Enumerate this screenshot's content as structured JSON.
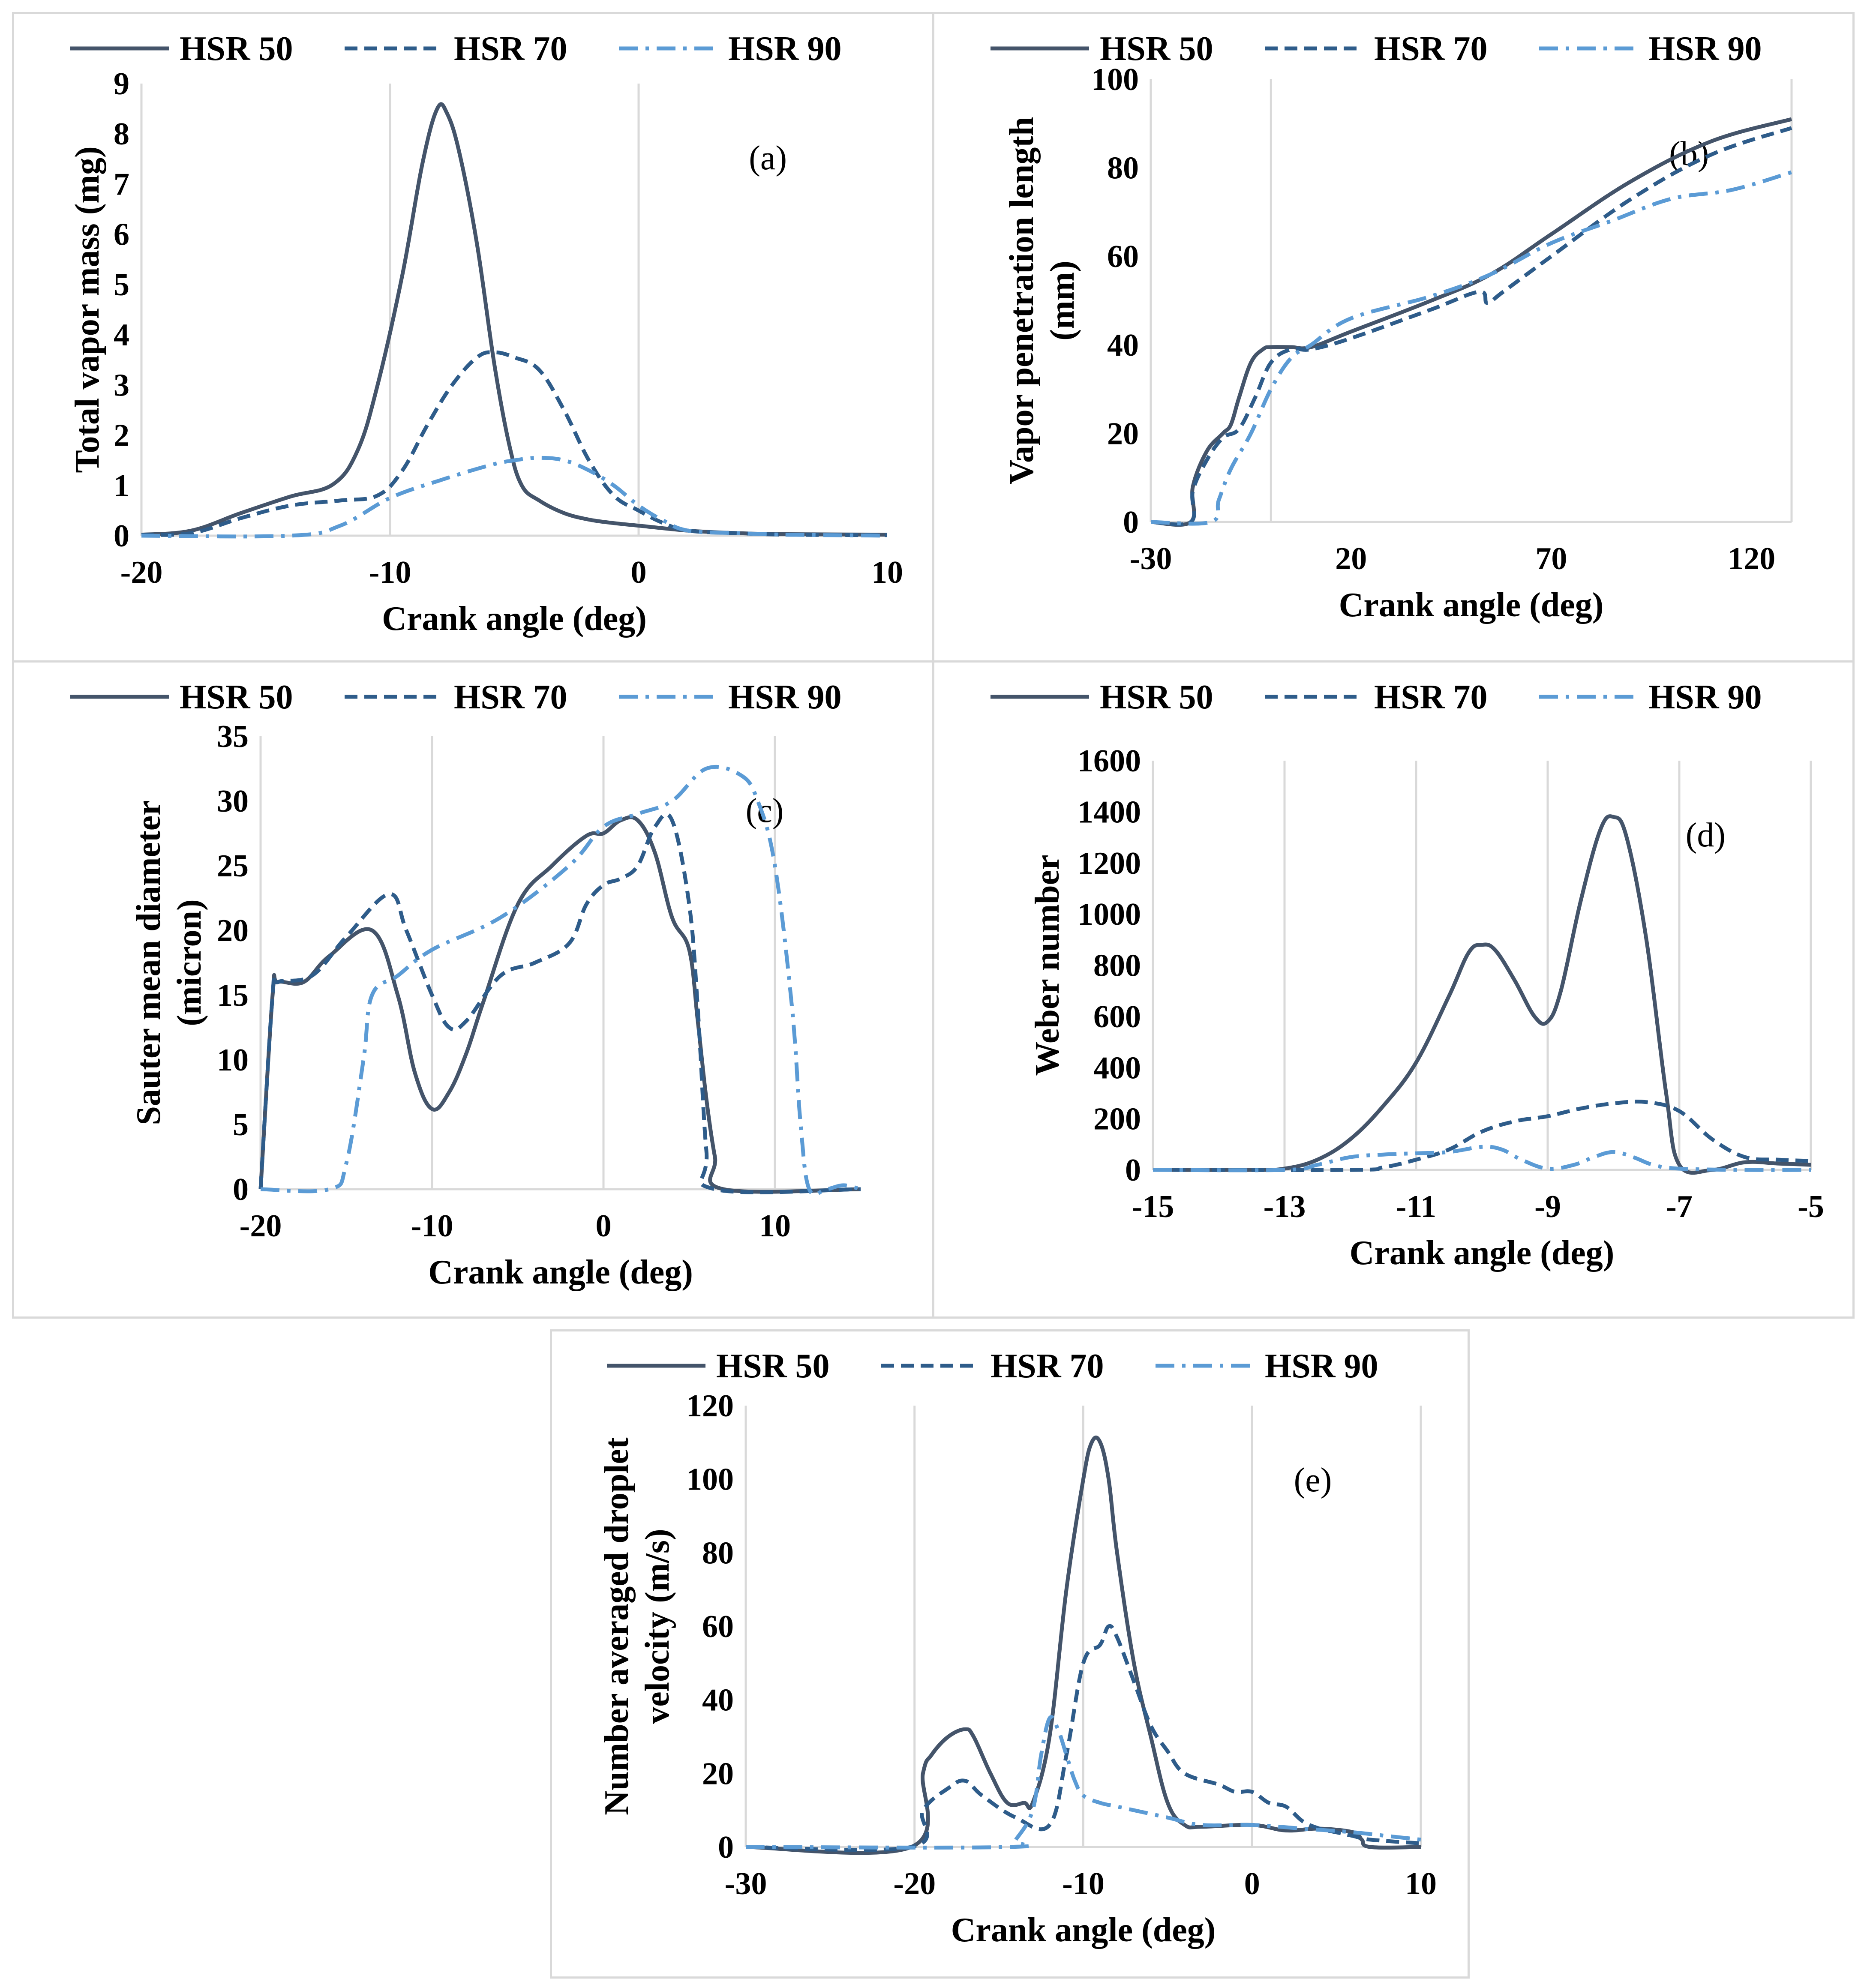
{
  "series_styles": [
    {
      "name": "HSR 50",
      "color": "#44546a",
      "dash": "none"
    },
    {
      "name": "HSR 70",
      "color": "#2e5c8a",
      "dash": "30,16"
    },
    {
      "name": "HSR 90",
      "color": "#5b9bd5",
      "dash": "44,18,8,18"
    }
  ],
  "chart_data": [
    {
      "id": "a",
      "type": "line",
      "panel_label": "(a)",
      "xlabel": "Crank angle (deg)",
      "ylabel": [
        "Total vapor mass (mg)"
      ],
      "xlim": [
        -20,
        10
      ],
      "ylim": [
        0,
        9
      ],
      "xticks": [
        -20,
        -10,
        0,
        10
      ],
      "yticks": [
        0,
        1,
        2,
        3,
        4,
        5,
        6,
        7,
        8,
        9
      ],
      "vgrid": [
        -10,
        0
      ],
      "legend": [
        "HSR 50",
        "HSR 70",
        "HSR 90"
      ],
      "series": [
        {
          "name": "HSR 50",
          "x": [
            -20,
            -18,
            -16,
            -14,
            -12.3,
            -11.3,
            -10.5,
            -9.5,
            -8.7,
            -8.1,
            -7.7,
            -7.2,
            -6.5,
            -5.8,
            -5.2,
            -4.7,
            -4,
            -3,
            -2,
            -1,
            0,
            2,
            4,
            6,
            10
          ],
          "y": [
            0.02,
            0.1,
            0.45,
            0.78,
            1.02,
            1.7,
            3.0,
            5.2,
            7.4,
            8.5,
            8.4,
            7.6,
            5.8,
            3.4,
            1.8,
            1.0,
            0.7,
            0.45,
            0.32,
            0.25,
            0.2,
            0.1,
            0.05,
            0.03,
            0.02
          ]
        },
        {
          "name": "HSR 70",
          "x": [
            -20,
            -18,
            -16,
            -14,
            -12,
            -10.5,
            -9.5,
            -8.5,
            -7.5,
            -6.5,
            -5.8,
            -5,
            -4,
            -3,
            -2,
            -1,
            0,
            1,
            2,
            4,
            6,
            10
          ],
          "y": [
            0.02,
            0.05,
            0.35,
            0.6,
            0.7,
            0.8,
            1.3,
            2.2,
            3.0,
            3.55,
            3.65,
            3.55,
            3.3,
            2.5,
            1.5,
            0.8,
            0.5,
            0.25,
            0.1,
            0.05,
            0.02,
            0.01
          ]
        },
        {
          "name": "HSR 90",
          "x": [
            -20,
            -14,
            -12,
            -10,
            -8,
            -6,
            -5,
            -4,
            -3,
            -2,
            -1,
            0,
            1,
            2,
            4,
            6,
            10
          ],
          "y": [
            0,
            0,
            0.2,
            0.75,
            1.1,
            1.4,
            1.5,
            1.55,
            1.5,
            1.3,
            1.0,
            0.6,
            0.3,
            0.1,
            0.05,
            0.02,
            0
          ]
        }
      ]
    },
    {
      "id": "b",
      "type": "line",
      "panel_label": "(b)",
      "xlabel": "Crank angle (deg)",
      "ylabel": [
        "Vapor penetration length",
        "(mm)"
      ],
      "xlim": [
        -30,
        130
      ],
      "ylim": [
        0,
        100
      ],
      "xticks": [
        -30,
        20,
        70,
        120
      ],
      "yticks": [
        0,
        20,
        40,
        60,
        80,
        100
      ],
      "vgrid": [
        0,
        130
      ],
      "legend": [
        "HSR 50",
        "HSR 70",
        "HSR 90"
      ],
      "series": [
        {
          "name": "HSR 50",
          "x": [
            -30,
            -20,
            -19.5,
            -16,
            -12,
            -10,
            -8,
            -5,
            -2,
            0,
            5,
            10,
            20,
            40,
            55,
            70,
            90,
            110,
            130
          ],
          "y": [
            0,
            0,
            8,
            16,
            20,
            22,
            28,
            36,
            39,
            39.5,
            39.5,
            39.5,
            43,
            50,
            56,
            65,
            77,
            86,
            91
          ]
        },
        {
          "name": "HSR 70",
          "x": [
            -30,
            -20,
            -19.5,
            -16,
            -12,
            -8,
            -4,
            0,
            5,
            10,
            20,
            40,
            52,
            54,
            58,
            70,
            90,
            110,
            130
          ],
          "y": [
            0,
            0,
            7,
            14,
            19,
            21,
            28,
            36,
            39,
            39,
            41.5,
            48,
            52,
            49.5,
            52,
            60,
            73,
            83,
            89
          ]
        },
        {
          "name": "HSR 90",
          "x": [
            -30,
            -15,
            -13,
            -10,
            -5,
            0,
            5,
            10,
            20,
            40,
            55,
            70,
            85,
            100,
            115,
            130
          ],
          "y": [
            0,
            0,
            5,
            12,
            20,
            30,
            37,
            40,
            46,
            51,
            56,
            63,
            68,
            73,
            75,
            79
          ]
        }
      ]
    },
    {
      "id": "c",
      "type": "line",
      "panel_label": "(c)",
      "xlabel": "Crank angle (deg)",
      "ylabel": [
        "Sauter mean diameter",
        "(micron)"
      ],
      "xlim": [
        -20,
        15
      ],
      "ylim": [
        0,
        35
      ],
      "xticks": [
        -20,
        -10,
        0,
        10
      ],
      "yticks": [
        0,
        5,
        10,
        15,
        20,
        25,
        30,
        35
      ],
      "vgrid": [
        -10,
        0,
        10
      ],
      "legend": [
        "HSR 50",
        "HSR 70",
        "HSR 90"
      ],
      "series": [
        {
          "name": "HSR 50",
          "x": [
            -20,
            -19.3,
            -19,
            -17.5,
            -16,
            -13.5,
            -12,
            -11,
            -10,
            -9,
            -8,
            -7,
            -5,
            -3,
            -1,
            0,
            1,
            2,
            3,
            4,
            5,
            5.5,
            6,
            6.5,
            7,
            15
          ],
          "y": [
            0,
            15,
            16,
            16,
            18,
            20,
            15,
            9,
            6.2,
            7.5,
            10.5,
            14.5,
            22,
            25,
            27.3,
            27.5,
            28.5,
            28.5,
            26,
            21,
            18.5,
            13,
            7,
            2.5,
            0,
            0
          ]
        },
        {
          "name": "HSR 70",
          "x": [
            -20,
            -19.3,
            -19,
            -17,
            -15,
            -12.5,
            -11.5,
            -10,
            -9,
            -8,
            -6,
            -4,
            -2,
            -1,
            0,
            1,
            2,
            3,
            4,
            5,
            5.5,
            6,
            6.5,
            15
          ],
          "y": [
            0,
            15,
            16,
            16.5,
            19.5,
            22.8,
            20,
            15,
            12.5,
            13,
            16.5,
            17.5,
            19,
            22,
            23.5,
            24,
            25,
            28,
            28.5,
            22,
            14,
            3,
            0,
            0
          ]
        },
        {
          "name": "HSR 90",
          "x": [
            -20,
            -16,
            -15,
            -14,
            -13.5,
            -12,
            -10,
            -6,
            -2,
            0,
            2,
            4,
            6,
            8,
            9,
            10,
            11,
            11.5,
            12,
            13,
            14,
            15
          ],
          "y": [
            0,
            0,
            2,
            10,
            15,
            16.5,
            18.5,
            21,
            25,
            28,
            29,
            30,
            32.5,
            32,
            30,
            25,
            14,
            5,
            0,
            0,
            0.3,
            0
          ]
        }
      ]
    },
    {
      "id": "d",
      "type": "line",
      "panel_label": "(d)",
      "xlabel": "Crank angle (deg)",
      "ylabel": [
        "Weber number"
      ],
      "xlim": [
        -15,
        -5
      ],
      "ylim": [
        0,
        1600
      ],
      "xticks": [
        -15,
        -13,
        -11,
        -9,
        -7,
        -5
      ],
      "yticks": [
        0,
        200,
        400,
        600,
        800,
        1000,
        1200,
        1400,
        1600
      ],
      "vgrid": [
        -13,
        -11,
        -9,
        -7,
        -5
      ],
      "legend": [
        "HSR 50",
        "HSR 70",
        "HSR 90"
      ],
      "series": [
        {
          "name": "HSR 50",
          "x": [
            -15,
            -13.5,
            -13,
            -12.5,
            -12,
            -11.5,
            -11,
            -10.5,
            -10.2,
            -10,
            -9.8,
            -9.5,
            -9.2,
            -9,
            -8.8,
            -8.5,
            -8.2,
            -8,
            -7.8,
            -7.5,
            -7.2,
            -7,
            -6.5,
            -6,
            -5.5,
            -5
          ],
          "y": [
            0,
            0,
            5,
            40,
            120,
            250,
            420,
            680,
            850,
            880,
            860,
            740,
            600,
            580,
            700,
            1050,
            1330,
            1380,
            1300,
            900,
            300,
            20,
            0,
            30,
            25,
            20
          ]
        },
        {
          "name": "HSR 70",
          "x": [
            -15,
            -12,
            -11.5,
            -11,
            -10.5,
            -10,
            -9.5,
            -9,
            -8.5,
            -8,
            -7.5,
            -7,
            -6.5,
            -6,
            -5.5,
            -5
          ],
          "y": [
            0,
            0,
            10,
            40,
            80,
            150,
            190,
            210,
            240,
            260,
            265,
            230,
            120,
            50,
            40,
            35
          ]
        },
        {
          "name": "HSR 90",
          "x": [
            -15,
            -13,
            -12.5,
            -12,
            -11.5,
            -11,
            -10.5,
            -10,
            -9.7,
            -9.4,
            -9,
            -8.6,
            -8.3,
            -8,
            -7.7,
            -7.4,
            -7,
            -6,
            -5
          ],
          "y": [
            0,
            0,
            20,
            50,
            60,
            65,
            70,
            90,
            80,
            40,
            5,
            20,
            50,
            70,
            50,
            20,
            5,
            0,
            0
          ]
        }
      ]
    },
    {
      "id": "e",
      "type": "line",
      "panel_label": "(e)",
      "xlabel": "Crank angle (deg)",
      "ylabel": [
        "Number averaged droplet",
        "velocity (m/s)"
      ],
      "xlim": [
        -30,
        10
      ],
      "ylim": [
        0,
        120
      ],
      "xticks": [
        -30,
        -20,
        -10,
        0,
        10
      ],
      "yticks": [
        0,
        20,
        40,
        60,
        80,
        100,
        120
      ],
      "vgrid": [
        -20,
        -10,
        0,
        10
      ],
      "legend": [
        "HSR 50",
        "HSR 70",
        "HSR 90"
      ],
      "series": [
        {
          "name": "HSR 50",
          "x": [
            -30,
            -20.2,
            -19.5,
            -19,
            -18,
            -17,
            -16.5,
            -15.5,
            -14.5,
            -13.5,
            -13,
            -12,
            -11,
            -10,
            -9.5,
            -9,
            -8.5,
            -8,
            -7,
            -6,
            -5,
            -4,
            -3,
            0,
            2,
            4,
            6,
            6.5,
            7,
            10
          ],
          "y": [
            0,
            0,
            20,
            25,
            30,
            32,
            30,
            20,
            12,
            12,
            12,
            30,
            70,
            100,
            110,
            110,
            100,
            80,
            50,
            30,
            12,
            6,
            5.5,
            6,
            4.5,
            5,
            4,
            2,
            0,
            0
          ]
        },
        {
          "name": "HSR 70",
          "x": [
            -30,
            -20.2,
            -19.5,
            -18,
            -17,
            -16,
            -14,
            -12,
            -11,
            -10,
            -9,
            -8.5,
            -8,
            -7,
            -6,
            -5,
            -4,
            -2,
            -1,
            0,
            1,
            2,
            3,
            4,
            5,
            6,
            7,
            10
          ],
          "y": [
            0,
            0,
            10,
            16,
            18,
            14,
            8,
            6,
            25,
            50,
            55,
            60,
            57,
            45,
            33,
            26,
            20,
            17,
            15,
            15,
            12,
            11,
            7,
            5,
            4,
            3,
            2,
            1
          ]
        },
        {
          "name": "HSR 90",
          "x": [
            -30,
            -14.5,
            -14,
            -13,
            -12.5,
            -12,
            -11.5,
            -11,
            -10.5,
            -10,
            -9,
            -8,
            -7,
            -5,
            -3,
            0,
            3,
            6,
            8,
            10
          ],
          "y": [
            0,
            0,
            2,
            10,
            25,
            35,
            32,
            25,
            18,
            14,
            12,
            11,
            10,
            8,
            6,
            6,
            5,
            4,
            3,
            2
          ]
        }
      ]
    }
  ]
}
